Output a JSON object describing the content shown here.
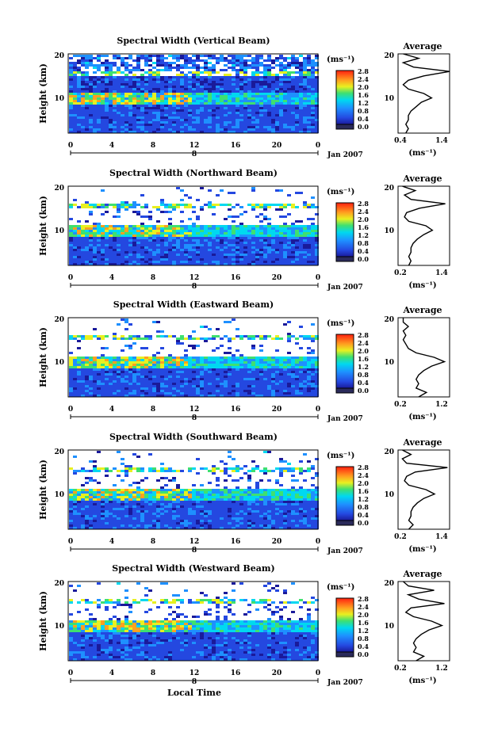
{
  "figure": {
    "xlabel_bottom": "Local Time",
    "date_label": "Jan 2007",
    "colorbar_unit": "(ms⁻¹)",
    "avg_title": "Average",
    "avg_xunit": "(ms⁻¹)",
    "ylabel": "Height (km)"
  },
  "colorbar": {
    "ticks": [
      "0.0",
      "0.4",
      "0.8",
      "1.2",
      "1.6",
      "2.0",
      "2.4",
      "2.8"
    ]
  },
  "chart_data": [
    {
      "type": "heatmap",
      "title": "Spectral Width (Vertical Beam)",
      "ylabel": "Height (km)",
      "xlabel": "",
      "x_ticks": [
        "0",
        "4",
        "8",
        "12",
        "16",
        "20",
        "0"
      ],
      "day_label": "8",
      "y_ticks": [
        "20",
        "10"
      ],
      "ylim": [
        2,
        20
      ],
      "xlim": [
        0,
        24
      ],
      "colorbar_range": [
        0.0,
        2.8
      ],
      "colorbar_unit": "(ms⁻¹)",
      "average_profile": {
        "title": "Average",
        "xticks": [
          "0.4",
          "1.4"
        ],
        "xlim": [
          0.4,
          1.4
        ],
        "xunit": "(ms⁻¹)",
        "height": [
          2,
          3,
          4,
          5,
          6,
          7,
          8,
          9,
          10,
          11,
          12,
          13,
          14,
          15,
          16,
          17,
          18,
          19,
          20
        ],
        "value": [
          0.55,
          0.6,
          0.55,
          0.6,
          0.6,
          0.65,
          0.75,
          0.85,
          1.05,
          0.9,
          0.6,
          0.5,
          0.6,
          0.9,
          1.4,
          0.7,
          0.5,
          0.8,
          0.5
        ]
      }
    },
    {
      "type": "heatmap",
      "title": "Spectral Width (Northward Beam)",
      "ylabel": "Height (km)",
      "xlabel": "",
      "x_ticks": [
        "0",
        "4",
        "8",
        "12",
        "16",
        "20",
        "0"
      ],
      "day_label": "8",
      "y_ticks": [
        "20",
        "10"
      ],
      "ylim": [
        2,
        20
      ],
      "xlim": [
        0,
        24
      ],
      "colorbar_range": [
        0.0,
        2.8
      ],
      "colorbar_unit": "(ms⁻¹)",
      "average_profile": {
        "title": "Average",
        "xticks": [
          "0.2",
          "1.4"
        ],
        "xlim": [
          0.2,
          1.4
        ],
        "xunit": "(ms⁻¹)",
        "height": [
          2,
          3,
          4,
          5,
          6,
          7,
          8,
          9,
          10,
          11,
          12,
          13,
          14,
          15,
          16,
          17,
          18,
          19,
          20
        ],
        "value": [
          0.45,
          0.5,
          0.45,
          0.5,
          0.5,
          0.55,
          0.65,
          0.8,
          1.0,
          0.85,
          0.45,
          0.35,
          0.4,
          0.7,
          1.3,
          0.5,
          0.35,
          0.6,
          0.3
        ]
      }
    },
    {
      "type": "heatmap",
      "title": "Spectral Width (Eastward Beam)",
      "ylabel": "Height (km)",
      "xlabel": "",
      "x_ticks": [
        "0",
        "4",
        "8",
        "12",
        "16",
        "20",
        "0"
      ],
      "day_label": "8",
      "y_ticks": [
        "20",
        "10"
      ],
      "ylim": [
        2,
        20
      ],
      "xlim": [
        0,
        24
      ],
      "colorbar_range": [
        0.0,
        2.8
      ],
      "colorbar_unit": "(ms⁻¹)",
      "average_profile": {
        "title": "Average",
        "xticks": [
          "0.2",
          "1.2"
        ],
        "xlim": [
          0.2,
          1.2
        ],
        "xunit": "(ms⁻¹)",
        "height": [
          2,
          3,
          4,
          5,
          6,
          7,
          8,
          9,
          10,
          11,
          12,
          13,
          14,
          15,
          16,
          17,
          18,
          19,
          20
        ],
        "value": [
          0.6,
          0.75,
          0.55,
          0.6,
          0.55,
          0.6,
          0.7,
          0.85,
          1.1,
          0.9,
          0.55,
          0.4,
          0.35,
          0.3,
          0.35,
          0.3,
          0.4,
          0.3,
          0.3
        ]
      }
    },
    {
      "type": "heatmap",
      "title": "Spectral Width (Southward Beam)",
      "ylabel": "Height (km)",
      "xlabel": "",
      "x_ticks": [
        "0",
        "4",
        "8",
        "12",
        "16",
        "20",
        "0"
      ],
      "day_label": "8",
      "y_ticks": [
        "20",
        "10"
      ],
      "ylim": [
        2,
        20
      ],
      "xlim": [
        0,
        24
      ],
      "colorbar_range": [
        0.0,
        2.8
      ],
      "colorbar_unit": "(ms⁻¹)",
      "average_profile": {
        "title": "Average",
        "xticks": [
          "0.2",
          "1.4"
        ],
        "xlim": [
          0.2,
          1.4
        ],
        "xunit": "(ms⁻¹)",
        "height": [
          2,
          3,
          4,
          5,
          6,
          7,
          8,
          9,
          10,
          11,
          12,
          13,
          14,
          15,
          16,
          17,
          18,
          19,
          20
        ],
        "value": [
          0.45,
          0.55,
          0.45,
          0.5,
          0.5,
          0.55,
          0.65,
          0.8,
          1.05,
          0.85,
          0.45,
          0.35,
          0.4,
          0.6,
          1.35,
          0.4,
          0.3,
          0.5,
          0.3
        ]
      }
    },
    {
      "type": "heatmap",
      "title": "Spectral Width (Westward Beam)",
      "ylabel": "Height (km)",
      "xlabel": "Local Time",
      "x_ticks": [
        "0",
        "4",
        "8",
        "12",
        "16",
        "20",
        "0"
      ],
      "day_label": "8",
      "y_ticks": [
        "20",
        "10"
      ],
      "ylim": [
        2,
        20
      ],
      "xlim": [
        0,
        24
      ],
      "colorbar_range": [
        0.0,
        2.8
      ],
      "colorbar_unit": "(ms⁻¹)",
      "average_profile": {
        "title": "Average",
        "xticks": [
          "0.2",
          "1.2"
        ],
        "xlim": [
          0.2,
          1.2
        ],
        "xunit": "(ms⁻¹)",
        "height": [
          2,
          3,
          4,
          5,
          6,
          7,
          8,
          9,
          10,
          11,
          12,
          13,
          14,
          15,
          16,
          17,
          18,
          19,
          20
        ],
        "value": [
          0.55,
          0.7,
          0.5,
          0.55,
          0.5,
          0.55,
          0.65,
          0.8,
          1.05,
          0.85,
          0.5,
          0.35,
          0.45,
          1.1,
          0.6,
          0.4,
          0.9,
          0.4,
          0.3
        ]
      }
    }
  ]
}
